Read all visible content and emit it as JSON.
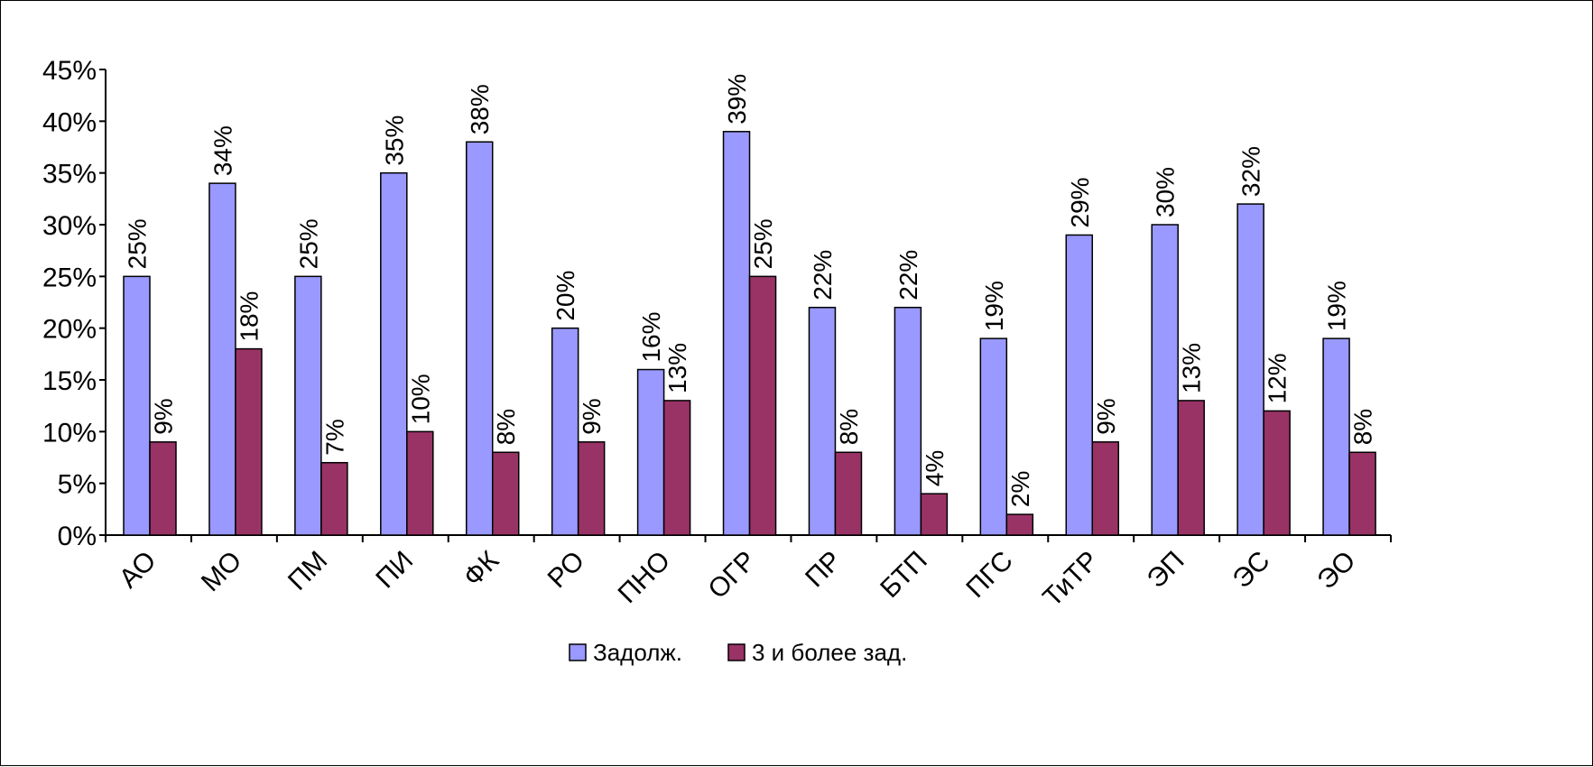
{
  "chart_data": {
    "type": "bar",
    "categories": [
      "АО",
      "МО",
      "ПМ",
      "ПИ",
      "ФК",
      "РО",
      "ПНО",
      "ОГР",
      "ПР",
      "БТП",
      "ПГС",
      "ТиТР",
      "ЭП",
      "ЭС",
      "ЭО"
    ],
    "series": [
      {
        "name": "Задолж.",
        "color": "#9999ff",
        "values": [
          25,
          34,
          25,
          35,
          38,
          20,
          16,
          39,
          22,
          22,
          19,
          29,
          30,
          32,
          19
        ],
        "value_labels": [
          "25%",
          "34%",
          "25%",
          "35%",
          "38%",
          "20%",
          "16%",
          "39%",
          "22%",
          "22%",
          "19%",
          "29%",
          "30%",
          "32%",
          "19%"
        ]
      },
      {
        "name": "3 и более зад.",
        "color": "#993366",
        "values": [
          9,
          18,
          7,
          10,
          8,
          9,
          13,
          25,
          8,
          4,
          2,
          9,
          13,
          12,
          8
        ],
        "value_labels": [
          "9%",
          "18%",
          "7%",
          "10%",
          "8%",
          "9%",
          "13%",
          "25%",
          "8%",
          "4%",
          "2%",
          "9%",
          "13%",
          "12%",
          "8%"
        ]
      }
    ],
    "y_ticks": [
      "0%",
      "5%",
      "10%",
      "15%",
      "20%",
      "25%",
      "30%",
      "35%",
      "40%",
      "45%"
    ],
    "ylim": [
      0,
      45
    ],
    "y_unit": "%",
    "grid": false,
    "legend_position": "bottom"
  }
}
